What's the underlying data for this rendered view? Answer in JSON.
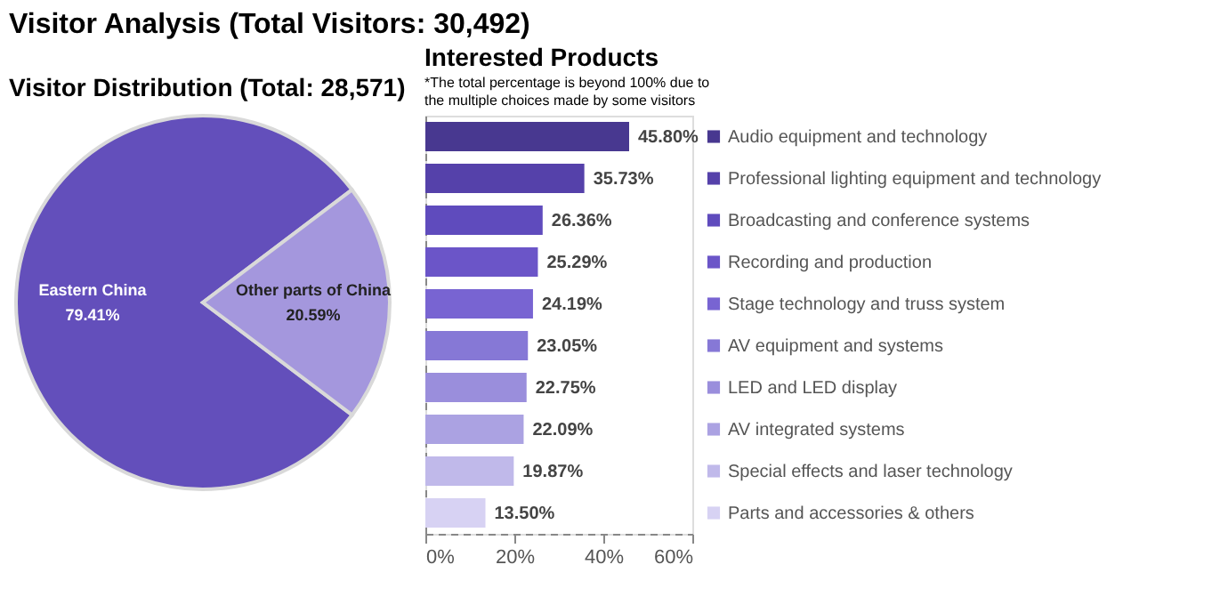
{
  "chart_data": [
    {
      "type": "pie",
      "title": "Visitor Analysis (Total Visitors: 30,492)",
      "subtitle": "Visitor Distribution (Total: 28,571)",
      "categories": [
        "Eastern China",
        "Other parts of China"
      ],
      "values": [
        79.41,
        20.59
      ],
      "colors": [
        "#634fbb",
        "#a497dd"
      ],
      "value_labels": [
        "79.41%",
        "20.59%"
      ],
      "legend": false
    },
    {
      "type": "bar",
      "orientation": "horizontal",
      "title": "Interested Products",
      "annotations": [
        "*The total percentage is beyond 100% due to the multiple choices made by some visitors"
      ],
      "categories": [
        "Audio equipment and technology",
        "Professional lighting equipment and technology",
        "Broadcasting and conference systems",
        "Recording and production",
        "Stage technology and truss system",
        "AV equipment and systems",
        "LED and LED display",
        "AV integrated systems",
        "Special effects and laser technology",
        "Parts and accessories & others"
      ],
      "values": [
        45.8,
        35.73,
        26.36,
        25.29,
        24.19,
        23.05,
        22.75,
        22.09,
        19.87,
        13.5
      ],
      "colors": [
        "#483890",
        "#5541aa",
        "#5f4bbd",
        "#6b55c8",
        "#7864d2",
        "#8678d6",
        "#9a8edc",
        "#aba2e2",
        "#c0b9ea",
        "#d7d2f3"
      ],
      "value_labels": [
        "45.80%",
        "35.73%",
        "26.36%",
        "25.29%",
        "24.19%",
        "23.05%",
        "22.75%",
        "22.09%",
        "19.87%",
        "13.50%"
      ],
      "xlim": [
        0,
        60
      ],
      "xticks": [
        {
          "value": 0,
          "label": "0%"
        },
        {
          "value": 20,
          "label": "20%"
        },
        {
          "value": 40,
          "label": "40%"
        },
        {
          "value": 60,
          "label": "60%"
        }
      ],
      "grid": false
    }
  ]
}
